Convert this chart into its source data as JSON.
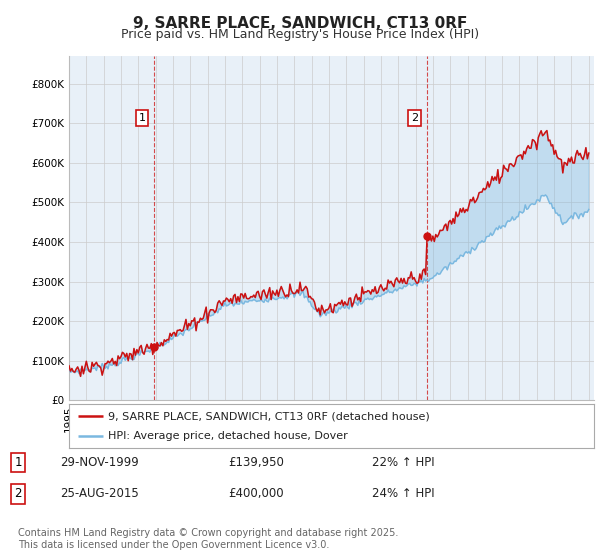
{
  "title": "9, SARRE PLACE, SANDWICH, CT13 0RF",
  "subtitle": "Price paid vs. HM Land Registry's House Price Index (HPI)",
  "ylim": [
    0,
    870000
  ],
  "yticks": [
    0,
    100000,
    200000,
    300000,
    400000,
    500000,
    600000,
    700000,
    800000
  ],
  "ytick_labels": [
    "£0",
    "£100K",
    "£200K",
    "£300K",
    "£400K",
    "£500K",
    "£600K",
    "£700K",
    "£800K"
  ],
  "hpi_color": "#7ab8e0",
  "price_color": "#cc1111",
  "chart_bg": "#e8f0f8",
  "marker1_year": 1999.91,
  "marker1_price": 139950,
  "marker2_year": 2015.65,
  "marker2_price": 400000,
  "marker1_date": "29-NOV-1999",
  "marker1_hpi_text": "22% ↑ HPI",
  "marker2_date": "25-AUG-2015",
  "marker2_hpi_text": "24% ↑ HPI",
  "legend_line1": "9, SARRE PLACE, SANDWICH, CT13 0RF (detached house)",
  "legend_line2": "HPI: Average price, detached house, Dover",
  "footnote": "Contains HM Land Registry data © Crown copyright and database right 2025.\nThis data is licensed under the Open Government Licence v3.0.",
  "background_color": "#ffffff",
  "grid_color": "#cccccc",
  "title_fontsize": 11,
  "subtitle_fontsize": 9,
  "tick_fontsize": 7.5,
  "legend_fontsize": 8,
  "footnote_fontsize": 7,
  "table_fontsize": 8.5,
  "marker1_price_str": "£139,950",
  "marker2_price_str": "£400,000"
}
